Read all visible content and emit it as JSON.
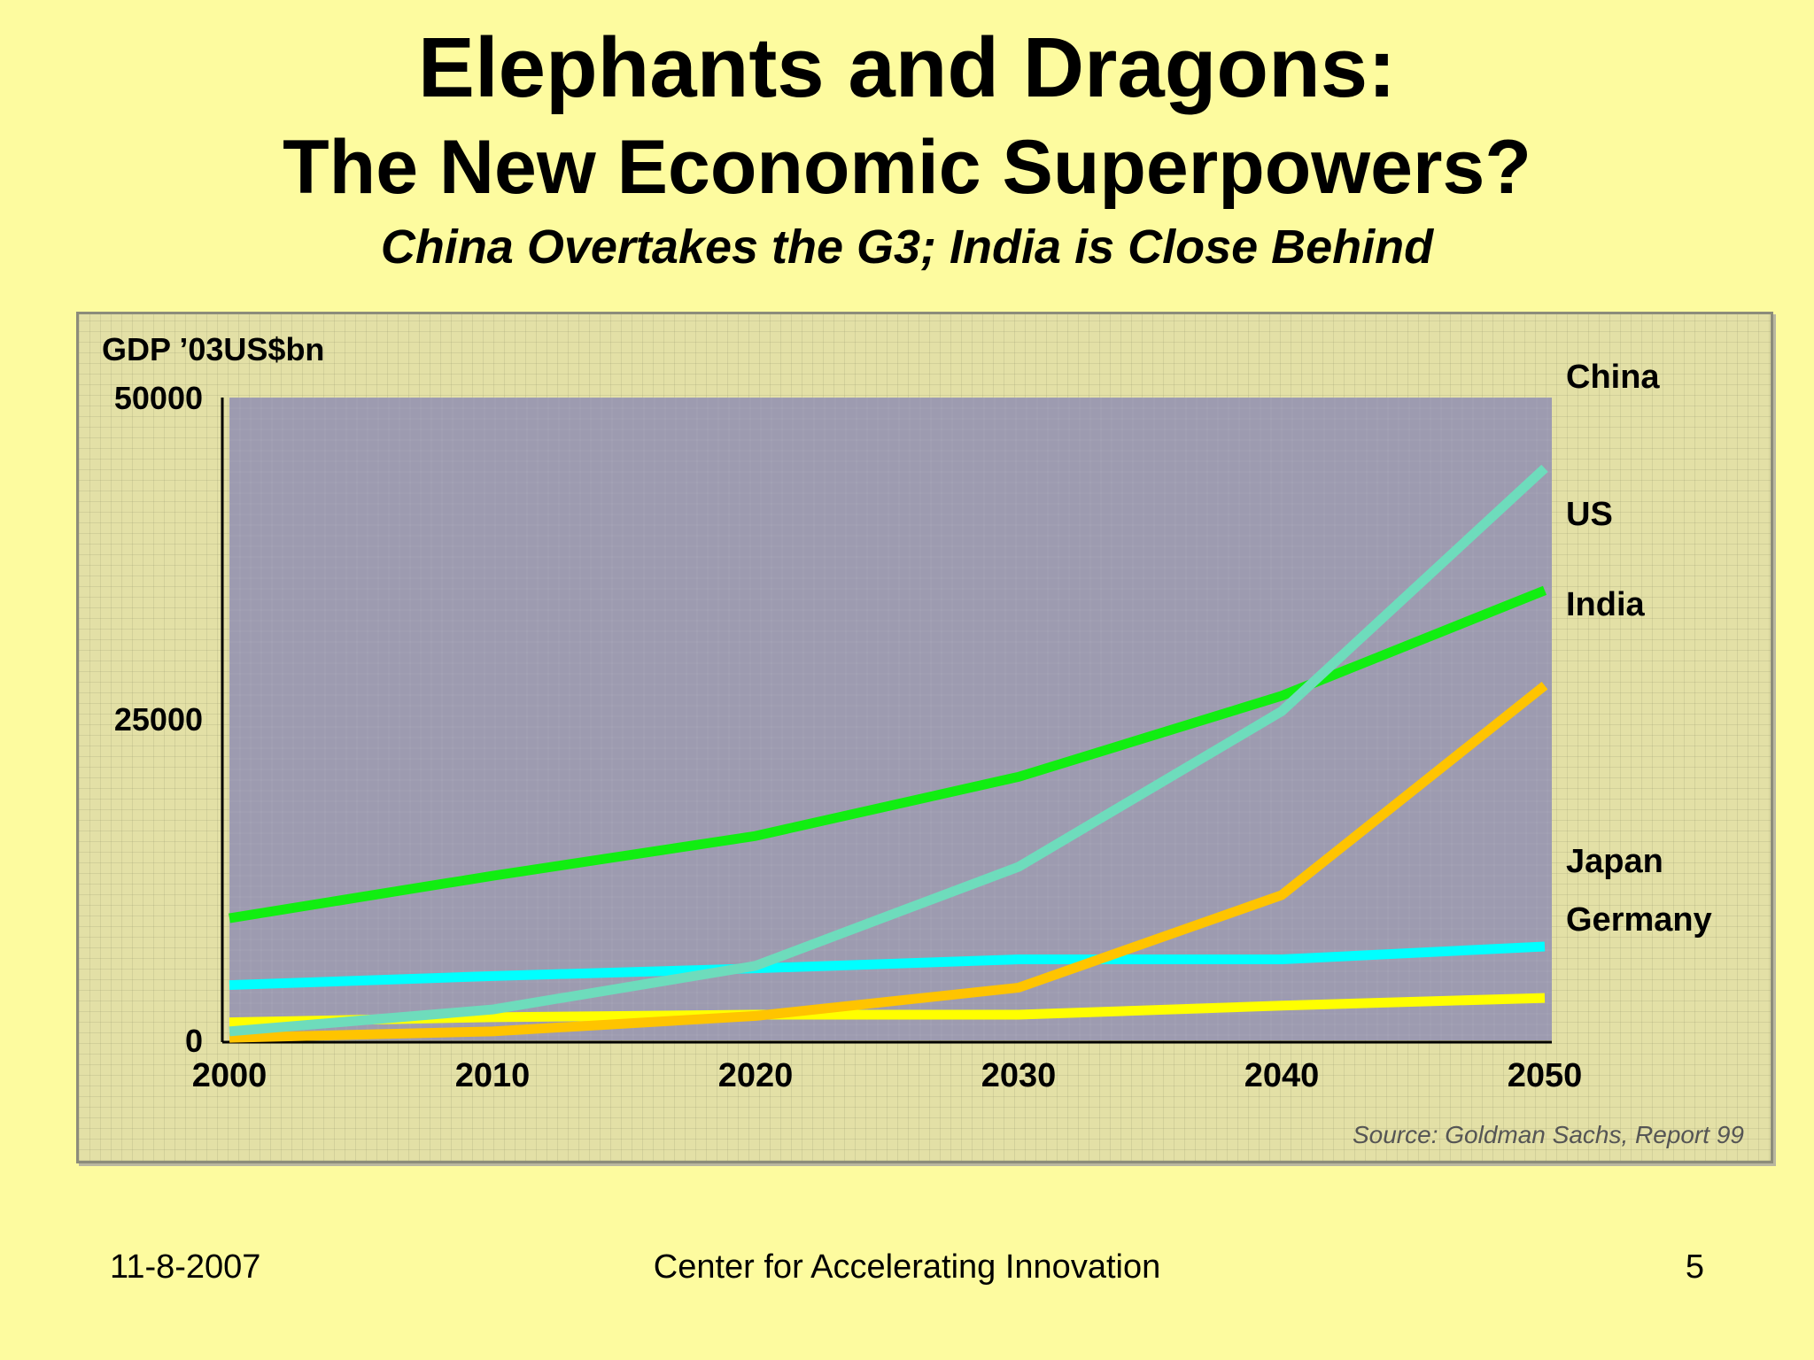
{
  "slide": {
    "title": "Elephants and Dragons:",
    "subtitle": "The New  Economic Superpowers?",
    "tagline": "China Overtakes the G3; India is Close Behind"
  },
  "footer": {
    "date": "11-8-2007",
    "organization": "Center for Accelerating Innovation",
    "page": "5"
  },
  "chart_data": {
    "type": "line",
    "ylabel": "GDP ’03US$bn",
    "source": "Source: Goldman Sachs, Report 99",
    "x": [
      2000,
      2010,
      2020,
      2030,
      2040,
      2050
    ],
    "ylim": [
      0,
      50000
    ],
    "yticks": [
      0,
      25000,
      50000
    ],
    "grid": false,
    "legend": "labels at line ends",
    "series": [
      {
        "name": "China",
        "color": "#6edcbc",
        "values": [
          700,
          2400,
          5800,
          13500,
          25600,
          44500
        ]
      },
      {
        "name": "US",
        "color": "#11ee11",
        "values": [
          9500,
          12800,
          15900,
          20500,
          26800,
          35000
        ]
      },
      {
        "name": "India",
        "color": "#ffc400",
        "values": [
          200,
          700,
          1900,
          4100,
          11300,
          27600
        ]
      },
      {
        "name": "Japan",
        "color": "#00ffff",
        "values": [
          4300,
          5000,
          5600,
          6300,
          6300,
          7300
        ]
      },
      {
        "name": "Germany",
        "color": "#ffff00",
        "values": [
          1400,
          1800,
          2000,
          2000,
          2700,
          3300
        ]
      }
    ]
  }
}
